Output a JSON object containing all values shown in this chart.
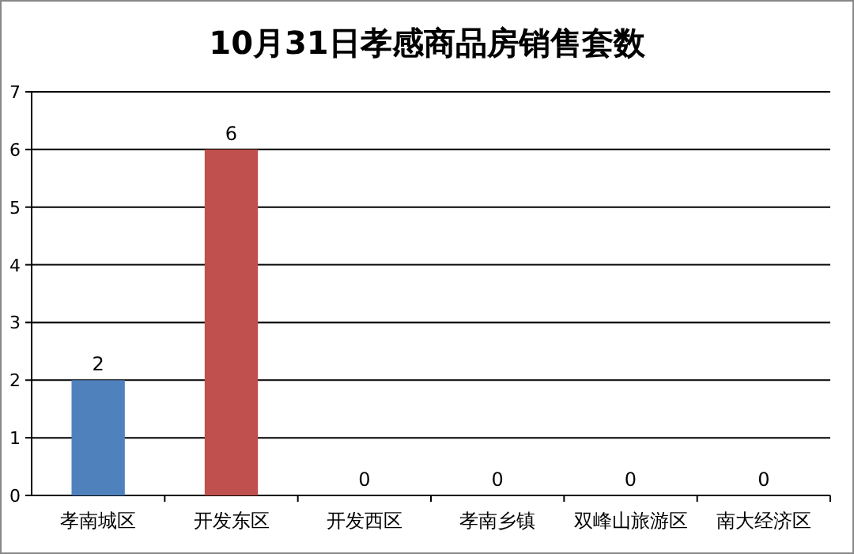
{
  "chart_data": {
    "type": "bar",
    "title": "10月31日孝感商品房销售套数",
    "categories": [
      "孝南城区",
      "开发东区",
      "开发西区",
      "孝南乡镇",
      "双峰山旅游区",
      "南大经济区"
    ],
    "values": [
      2,
      6,
      0,
      0,
      0,
      0
    ],
    "colors": [
      "#4f81bd",
      "#c0504d",
      "#9bbb59",
      "#8064a2",
      "#4bacc6",
      "#f79646"
    ],
    "ylim": [
      0,
      7
    ],
    "yticks": [
      0,
      1,
      2,
      3,
      4,
      5,
      6,
      7
    ],
    "grid": "y",
    "data_labels": true
  }
}
